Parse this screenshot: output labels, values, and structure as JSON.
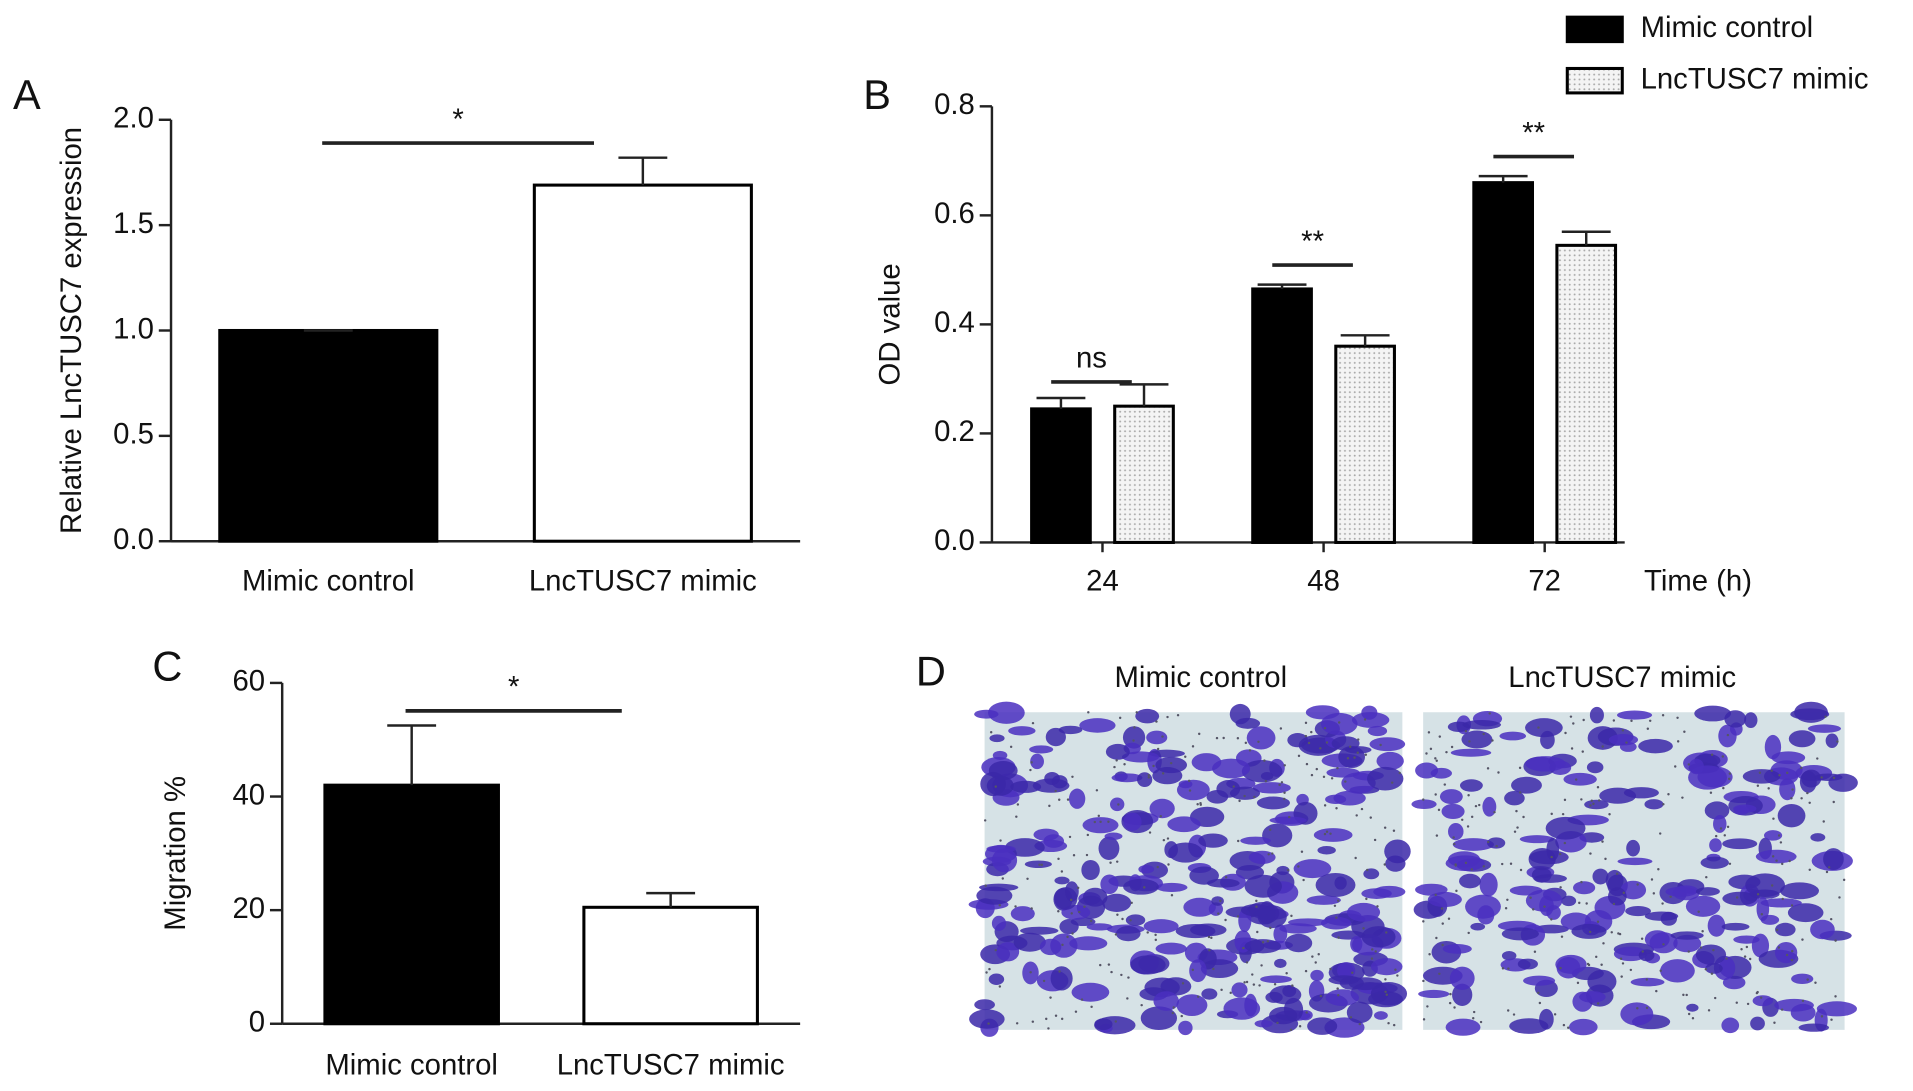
{
  "chart_data": [
    {
      "type": "bar",
      "panel": "A",
      "ylabel": "Relative LncTUSC7 expression",
      "categories": [
        "Mimic control",
        "LncTUSC7 mimic"
      ],
      "values": [
        1.0,
        1.69
      ],
      "errors": [
        0,
        0.13
      ],
      "colors": [
        "#000000",
        "#ffffff"
      ],
      "ylim": [
        0,
        2
      ],
      "yticks": [
        {
          "value": 0,
          "label": "0.0"
        },
        0.5,
        {
          "value": 1,
          "label": "1.0"
        },
        1.5,
        {
          "value": 2,
          "label": "2.0"
        }
      ],
      "significance": [
        "*"
      ]
    },
    {
      "type": "grouped-bar",
      "panel": "B",
      "ylabel": "OD value",
      "xlabel": "Time (h)",
      "categories": [
        "24",
        "48",
        "72"
      ],
      "series": [
        {
          "name": "Mimic control",
          "color": "#000000",
          "values": [
            0.245,
            0.465,
            0.66
          ],
          "errors": [
            0.02,
            0.008,
            0.012
          ]
        },
        {
          "name": "LncTUSC7 mimic",
          "color": "#e6e6e6",
          "values": [
            0.25,
            0.36,
            0.545
          ],
          "errors": [
            0.04,
            0.02,
            0.025
          ]
        }
      ],
      "ylim": [
        0,
        0.8
      ],
      "yticks": [
        {
          "value": 0,
          "label": "0.0"
        },
        0.2,
        0.4,
        0.6,
        0.8
      ],
      "legend": "top-right",
      "significance": [
        "ns",
        "**",
        "**"
      ]
    },
    {
      "type": "bar",
      "panel": "C",
      "ylabel": "Migration %",
      "categories": [
        "Mimic control",
        "LncTUSC7 mimic"
      ],
      "values": [
        42,
        20.5
      ],
      "errors": [
        10.5,
        2.5
      ],
      "colors": [
        "#000000",
        "#ffffff"
      ],
      "ylim": [
        0,
        60
      ],
      "yticks": [
        0,
        20,
        40,
        60
      ],
      "significance": [
        "*"
      ]
    }
  ],
  "panel_d": {
    "label": "D",
    "titles": [
      "Mimic control",
      "LncTUSC7 mimic"
    ]
  }
}
